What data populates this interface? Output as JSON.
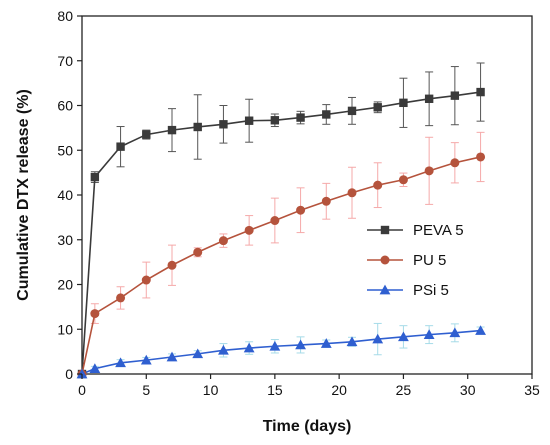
{
  "chart_data": {
    "type": "line",
    "title": "",
    "xlabel": "Time (days)",
    "ylabel": "Cumulative DTX release (%)",
    "xlim": [
      0,
      35
    ],
    "ylim": [
      0,
      80
    ],
    "x_ticks": [
      0,
      5,
      10,
      15,
      20,
      25,
      30,
      35
    ],
    "y_ticks": [
      0,
      10,
      20,
      30,
      40,
      50,
      60,
      70,
      80
    ],
    "grid": false,
    "legend_position": "right",
    "series": [
      {
        "name": "PEVA 5",
        "color": "#3a3a3a",
        "marker": "square",
        "x": [
          0,
          1,
          3,
          5,
          7,
          9,
          11,
          13,
          15,
          17,
          19,
          21,
          23,
          25,
          27,
          29,
          31
        ],
        "y": [
          0,
          44,
          50.8,
          53.5,
          54.5,
          55.2,
          55.8,
          56.6,
          56.7,
          57.3,
          58,
          58.8,
          59.6,
          60.6,
          61.5,
          62.2,
          63
        ],
        "err": [
          0,
          1.2,
          4.5,
          1.0,
          4.8,
          7.2,
          4.2,
          4.8,
          1.4,
          1.4,
          2.2,
          3.0,
          1.2,
          5.5,
          6.0,
          6.5,
          6.5
        ]
      },
      {
        "name": "PU 5",
        "color": "#b5533c",
        "marker": "circle",
        "err_color": "#f5a9a9",
        "x": [
          0,
          1,
          3,
          5,
          7,
          9,
          11,
          13,
          15,
          17,
          19,
          21,
          23,
          25,
          27,
          29,
          31
        ],
        "y": [
          0,
          13.5,
          17,
          21,
          24.3,
          27.2,
          29.8,
          32.1,
          34.3,
          36.6,
          38.6,
          40.5,
          42.2,
          43.4,
          45.4,
          47.2,
          48.5
        ],
        "err": [
          0,
          2.2,
          2.5,
          4.0,
          4.5,
          1.0,
          1.5,
          3.3,
          5.0,
          5.0,
          4.0,
          5.7,
          5.0,
          1.5,
          7.5,
          4.5,
          5.5
        ]
      },
      {
        "name": "PSi 5",
        "color": "#2f5fd0",
        "marker": "triangle",
        "err_color": "#a6dbe8",
        "x": [
          0,
          1,
          3,
          5,
          7,
          9,
          11,
          13,
          15,
          17,
          19,
          21,
          23,
          25,
          27,
          29,
          31
        ],
        "y": [
          0,
          1.2,
          2.5,
          3.1,
          3.8,
          4.5,
          5.3,
          5.8,
          6.2,
          6.5,
          6.8,
          7.2,
          7.8,
          8.3,
          8.8,
          9.2,
          9.7
        ],
        "err": [
          0,
          0.5,
          0.7,
          0.6,
          0.7,
          0.7,
          1.5,
          1.4,
          1.5,
          1.8,
          0.8,
          1.0,
          3.5,
          2.5,
          2.0,
          2.0,
          0.8
        ]
      }
    ]
  }
}
